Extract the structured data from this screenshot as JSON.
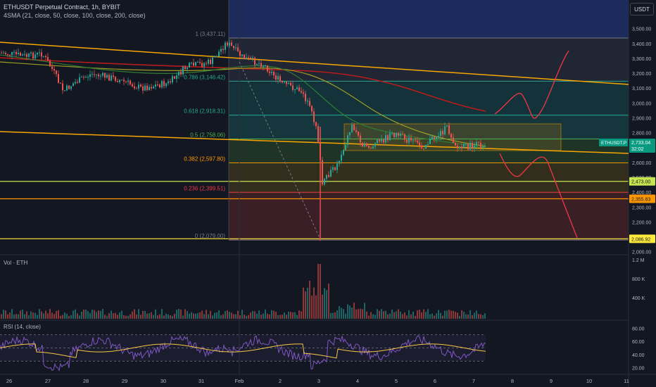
{
  "header": {
    "symbol_line": "ETHUSDT Perpetual Contract, 1h, BYBIT",
    "indicator_line": "4SMA (21, close, 50, close, 100, close, 200, close)"
  },
  "currency_button": "USDT",
  "price_axis": {
    "ticks": [
      "3,500.00",
      "3,400.00",
      "3,300.00",
      "3,200.00",
      "3,100.00",
      "3,000.00",
      "2,900.00",
      "2,800.00",
      "2,700.00",
      "2,600.00",
      "2,500.00",
      "2,400.00",
      "2,300.00",
      "2,200.00",
      "2,100.00",
      "2,000.00"
    ]
  },
  "price_badges": {
    "current_symbol": "ETHUSDT.P",
    "current_price": "2,733.04",
    "countdown": "32:02",
    "level_green": "2,473.00",
    "level_orange": "2,355.83",
    "level_yellow": "2,086.92"
  },
  "fib_levels": [
    {
      "label": "1 (3,437.11)",
      "price": 3437.11,
      "color": "#787b86"
    },
    {
      "label": "0.786 (3,146.42)",
      "price": 3146.42,
      "color": "#22ab94"
    },
    {
      "label": "0.618 (2,918.31)",
      "price": 2918.31,
      "color": "#22ab94"
    },
    {
      "label": "0.5 (2,758.06)",
      "price": 2758.06,
      "color": "#4caf50"
    },
    {
      "label": "0.382 (2,597.80)",
      "price": 2597.8,
      "color": "#ff9800"
    },
    {
      "label": "0.236 (2,399.51)",
      "price": 2399.51,
      "color": "#f23645"
    },
    {
      "label": "0 (2,079.00)",
      "price": 2079.0,
      "color": "#787b86"
    }
  ],
  "volume_pane": {
    "title": "Vol · ETH",
    "ticks": [
      "1.2 M",
      "800 K",
      "400 K"
    ]
  },
  "rsi_pane": {
    "title": "RSI (14, close)",
    "ticks": [
      "80.00",
      "60.00",
      "40.00",
      "20.00"
    ]
  },
  "time_axis": {
    "labels": [
      "26",
      "27",
      "28",
      "29",
      "30",
      "31",
      "Feb",
      "2",
      "3",
      "4",
      "5",
      "6",
      "7",
      "8",
      "9",
      "10",
      "11"
    ]
  },
  "colors": {
    "background": "#131722",
    "bull": "#26a69a",
    "bear": "#ef5350",
    "trendline": "#f7a600",
    "projection": "#f23645"
  }
}
